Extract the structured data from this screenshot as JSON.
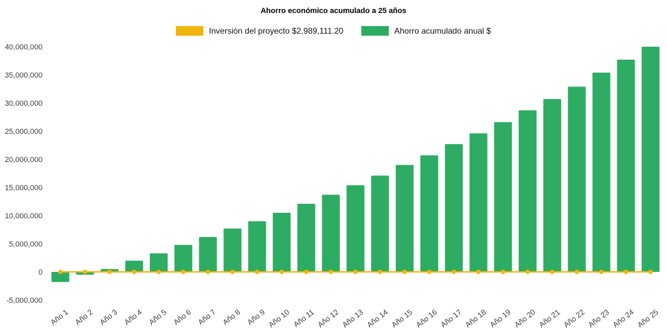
{
  "title": "Ahorro económico acumulado a 25 años",
  "legend": [
    {
      "label": "Inversión del proyecto $2,989,111.20",
      "color": "#F2B50D",
      "type": "line"
    },
    {
      "label": "Ahorro acumulado anual $",
      "color": "#2EAC64",
      "type": "bar"
    }
  ],
  "chart_data": {
    "type": "bar",
    "title": "Ahorro económico acumulado a 25 años",
    "categories": [
      "Año 1",
      "Año 2",
      "Año 3",
      "Año 4",
      "Año 5",
      "Año 6",
      "Año 7",
      "Año 8",
      "Año 9",
      "Año 10",
      "Año 11",
      "Año 12",
      "Año 13",
      "Año 14",
      "Año 15",
      "Año 16",
      "Año 17",
      "Año 18",
      "Año 19",
      "Año 20",
      "Año 21",
      "Año 22",
      "Año 23",
      "Año 24",
      "Año 25"
    ],
    "series": [
      {
        "name": "Ahorro acumulado anual $",
        "type": "bar",
        "color": "#2EAC64",
        "values": [
          -1800000,
          -500000,
          500000,
          2000000,
          3300000,
          4800000,
          6200000,
          7700000,
          9000000,
          10500000,
          12100000,
          13700000,
          15400000,
          17100000,
          19000000,
          20700000,
          22700000,
          24600000,
          26600000,
          28700000,
          30700000,
          32900000,
          35400000,
          37700000,
          40000000
        ]
      },
      {
        "name": "Inversión del proyecto $2,989,111.20",
        "type": "line",
        "color": "#F2B50D",
        "values": [
          0,
          0,
          0,
          0,
          0,
          0,
          0,
          0,
          0,
          0,
          0,
          0,
          0,
          0,
          0,
          0,
          0,
          0,
          0,
          0,
          0,
          0,
          0,
          0,
          0
        ]
      }
    ],
    "xlabel": "",
    "ylabel": "",
    "ylim": [
      -5000000,
      40000000
    ],
    "ytick_step": 5000000,
    "grid": false,
    "legend_position": "top"
  }
}
